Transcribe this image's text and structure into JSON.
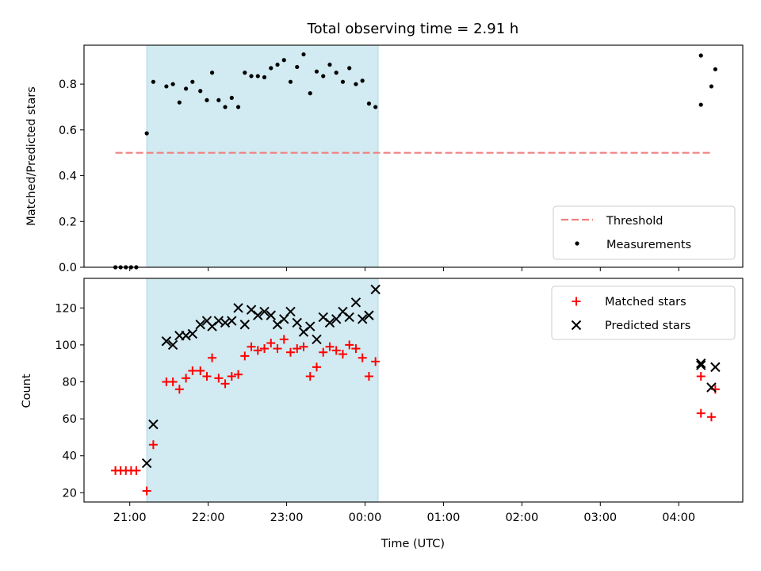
{
  "figure_title": "Total observing time = 2.91 h",
  "xlabel": "Time (UTC)",
  "xticks": [
    "21:00",
    "22:00",
    "23:00",
    "00:00",
    "01:00",
    "02:00",
    "03:00",
    "04:00"
  ],
  "colors": {
    "threshold": "#f08080",
    "measurements": "#000000",
    "matched": "#ff0000",
    "predicted": "#000000",
    "span": "#add8e6"
  },
  "chart_data": [
    {
      "type": "scatter",
      "ylabel": "Matched/Predicted stars",
      "xlim": [
        "20:25",
        "04:49"
      ],
      "ylim": [
        0,
        0.97
      ],
      "yticks": [
        "0.0",
        "0.2",
        "0.4",
        "0.6",
        "0.8"
      ],
      "shaded_span": [
        "21:13",
        "00:10"
      ],
      "legend": {
        "position": "lower right",
        "entries": [
          "Threshold",
          "Measurements"
        ]
      },
      "threshold": {
        "name": "Threshold",
        "y": 0.5,
        "x": [
          "20:49",
          "04:26"
        ]
      },
      "measurements": {
        "name": "Measurements",
        "x": [
          "20:49",
          "20:53",
          "20:57",
          "21:01",
          "21:05",
          "21:13",
          "21:18",
          "21:28",
          "21:33",
          "21:38",
          "21:43",
          "21:48",
          "21:54",
          "21:59",
          "22:03",
          "22:08",
          "22:13",
          "22:18",
          "22:23",
          "22:28",
          "22:33",
          "22:38",
          "22:43",
          "22:48",
          "22:53",
          "22:58",
          "23:03",
          "23:08",
          "23:13",
          "23:18",
          "23:23",
          "23:28",
          "23:33",
          "23:38",
          "23:43",
          "23:48",
          "23:53",
          "23:58",
          "00:03",
          "00:08",
          "04:17",
          "04:17",
          "04:25",
          "04:28"
        ],
        "y": [
          0,
          0,
          0,
          0,
          0,
          0.585,
          0.81,
          0.79,
          0.8,
          0.72,
          0.78,
          0.81,
          0.77,
          0.73,
          0.85,
          0.73,
          0.7,
          0.74,
          0.7,
          0.85,
          0.835,
          0.835,
          0.83,
          0.87,
          0.885,
          0.905,
          0.81,
          0.875,
          0.93,
          0.76,
          0.855,
          0.835,
          0.885,
          0.85,
          0.81,
          0.87,
          0.8,
          0.815,
          0.715,
          0.7,
          0.925,
          0.71,
          0.79,
          0.865
        ]
      }
    },
    {
      "type": "scatter",
      "ylabel": "Count",
      "xlim": [
        "20:25",
        "04:49"
      ],
      "ylim": [
        15,
        136
      ],
      "yticks": [
        "20",
        "40",
        "60",
        "80",
        "100",
        "120"
      ],
      "shaded_span": [
        "21:13",
        "00:10"
      ],
      "legend": {
        "position": "upper right",
        "entries": [
          "Matched stars",
          "Predicted stars"
        ]
      },
      "series": [
        {
          "name": "Matched stars",
          "marker": "+",
          "x": [
            "20:49",
            "20:53",
            "20:57",
            "21:01",
            "21:05",
            "21:13",
            "21:18",
            "21:28",
            "21:33",
            "21:38",
            "21:43",
            "21:48",
            "21:54",
            "21:59",
            "22:03",
            "22:08",
            "22:13",
            "22:18",
            "22:23",
            "22:28",
            "22:33",
            "22:38",
            "22:43",
            "22:48",
            "22:53",
            "22:58",
            "23:03",
            "23:08",
            "23:13",
            "23:18",
            "23:23",
            "23:28",
            "23:33",
            "23:38",
            "23:43",
            "23:48",
            "23:53",
            "23:58",
            "00:03",
            "00:08",
            "04:17",
            "04:17",
            "04:25",
            "04:28"
          ],
          "y": [
            32,
            32,
            32,
            32,
            32,
            21,
            46,
            80,
            80,
            76,
            82,
            86,
            86,
            83,
            93,
            82,
            79,
            83,
            84,
            94,
            99,
            97,
            98,
            101,
            98,
            103,
            96,
            98,
            99,
            83,
            88,
            96,
            99,
            97,
            95,
            100,
            98,
            93,
            83,
            91,
            63,
            83,
            61,
            76
          ]
        },
        {
          "name": "Predicted stars",
          "marker": "x",
          "x": [
            "21:13",
            "21:18",
            "21:28",
            "21:33",
            "21:38",
            "21:43",
            "21:48",
            "21:54",
            "21:59",
            "22:03",
            "22:08",
            "22:13",
            "22:18",
            "22:23",
            "22:28",
            "22:33",
            "22:38",
            "22:43",
            "22:48",
            "22:53",
            "22:58",
            "23:03",
            "23:08",
            "23:13",
            "23:18",
            "23:23",
            "23:28",
            "23:33",
            "23:38",
            "23:43",
            "23:48",
            "23:53",
            "23:58",
            "00:03",
            "00:08",
            "04:17",
            "04:17",
            "04:25",
            "04:28"
          ],
          "y": [
            36,
            57,
            102,
            100,
            105,
            105,
            106,
            111,
            113,
            110,
            113,
            112,
            113,
            120,
            111,
            119,
            116,
            118,
            116,
            111,
            114,
            118,
            112,
            107,
            110,
            103,
            115,
            112,
            114,
            118,
            115,
            123,
            114,
            116,
            130,
            90,
            89,
            77,
            88
          ]
        }
      ]
    }
  ]
}
